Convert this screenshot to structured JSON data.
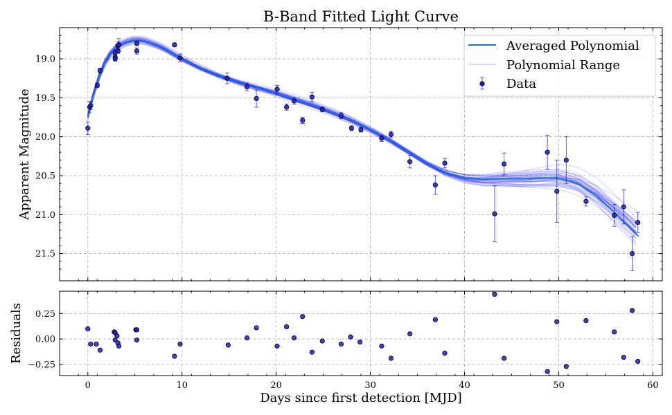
{
  "chart_data": [
    {
      "type": "scatter",
      "title": "B-Band Fitted Light Curve",
      "ylabel": "Apparent Magnitude",
      "xlim": [
        -3,
        61
      ],
      "ylim": [
        21.85,
        18.6
      ],
      "y_inverted": true,
      "xticks": [
        0,
        10,
        20,
        30,
        40,
        50,
        60
      ],
      "yticks": [
        "19.0",
        "19.5",
        "20.0",
        "20.5",
        "21.0",
        "21.5"
      ],
      "grid": true,
      "legend": {
        "placement": "top-right",
        "entries": [
          {
            "label": "Averaged Polynomial",
            "kind": "line"
          },
          {
            "label": "Polynomial Range",
            "kind": "line-faint"
          },
          {
            "label": "Data",
            "kind": "errorbar-marker"
          }
        ]
      },
      "series": [
        {
          "name": "Averaged Polynomial",
          "x": [
            0,
            0.5,
            1,
            1.5,
            2,
            2.5,
            3,
            3.5,
            4,
            4.5,
            5,
            5.5,
            6,
            7,
            8,
            9,
            10,
            12,
            14,
            16,
            18,
            20,
            22,
            24,
            26,
            28,
            30,
            32,
            34,
            36,
            38,
            40,
            42,
            44,
            46,
            48,
            50,
            52,
            54,
            56,
            57,
            58,
            58.5
          ],
          "y": [
            19.74,
            19.5,
            19.3,
            19.13,
            19.0,
            18.92,
            18.86,
            18.82,
            18.79,
            18.77,
            18.76,
            18.76,
            18.77,
            18.81,
            18.86,
            18.93,
            19.0,
            19.12,
            19.22,
            19.3,
            19.37,
            19.44,
            19.52,
            19.6,
            19.69,
            19.79,
            19.91,
            20.04,
            20.19,
            20.34,
            20.46,
            20.53,
            20.55,
            20.54,
            20.54,
            20.53,
            20.53,
            20.6,
            20.76,
            20.98,
            21.1,
            21.22,
            21.28
          ]
        },
        {
          "name": "Data",
          "x": [
            0,
            0.2,
            0.3,
            1,
            1.3,
            2.9,
            2.9,
            2.9,
            3.2,
            3.2,
            3.3,
            5.2,
            5.2,
            9.2,
            9.8,
            14.8,
            16.9,
            17.9,
            20.1,
            21.1,
            21.9,
            22.8,
            23.8,
            24.9,
            26.9,
            28.0,
            29.0,
            31.2,
            32.2,
            34.2,
            36.9,
            37.9,
            43.2,
            44.2,
            48.8,
            49.8,
            50.8,
            52.9,
            55.9,
            56.9,
            57.8,
            58.4
          ],
          "y": [
            19.89,
            19.62,
            19.6,
            19.34,
            19.15,
            18.92,
            18.98,
            19.0,
            18.83,
            18.9,
            18.82,
            18.8,
            18.9,
            18.82,
            18.99,
            19.25,
            19.36,
            19.51,
            19.39,
            19.62,
            19.54,
            19.79,
            19.49,
            19.65,
            19.73,
            19.89,
            19.91,
            20.02,
            19.97,
            20.32,
            20.62,
            20.34,
            20.99,
            20.35,
            20.2,
            20.7,
            20.3,
            20.83,
            21.01,
            20.9,
            21.5,
            21.1
          ],
          "yerr": [
            0.08,
            0.07,
            0.05,
            0.03,
            0.03,
            0.03,
            0.03,
            0.03,
            0.05,
            0.03,
            0.08,
            0.03,
            0.04,
            0.02,
            0.05,
            0.07,
            0.05,
            0.11,
            0.05,
            0.04,
            0.04,
            0.04,
            0.06,
            0.03,
            0.04,
            0.03,
            0.03,
            0.04,
            0.04,
            0.08,
            0.12,
            0.06,
            0.36,
            0.14,
            0.22,
            0.4,
            0.3,
            0.06,
            0.14,
            0.22,
            0.22,
            0.13
          ]
        }
      ]
    },
    {
      "type": "scatter",
      "xlabel": "Days since first detection [MJD]",
      "ylabel": "Residuals",
      "xlim": [
        -3,
        61
      ],
      "ylim": [
        -0.36,
        0.47
      ],
      "xticks": [
        0,
        10,
        20,
        30,
        40,
        50,
        60
      ],
      "yticks": [
        "0.25",
        "0.00",
        "−0.25"
      ],
      "grid": true,
      "series": [
        {
          "name": "Residuals",
          "x": [
            0,
            0.3,
            0.9,
            1.3,
            2.8,
            2.9,
            2.9,
            3.1,
            3.2,
            3.3,
            5.1,
            5.2,
            5.2,
            9.2,
            9.8,
            14.9,
            16.9,
            17.9,
            20.1,
            21.1,
            21.9,
            22.8,
            23.8,
            24.9,
            26.9,
            27.9,
            28.9,
            31.2,
            32.2,
            34.2,
            36.9,
            37.9,
            43.2,
            44.2,
            48.8,
            49.8,
            50.8,
            52.9,
            55.9,
            56.9,
            57.8,
            58.4
          ],
          "y": [
            0.1,
            -0.05,
            -0.05,
            -0.11,
            0.07,
            0.06,
            -0.01,
            0.03,
            -0.04,
            -0.07,
            0.09,
            0.09,
            -0.01,
            -0.17,
            -0.05,
            -0.06,
            0.01,
            0.11,
            -0.07,
            0.12,
            0.01,
            0.22,
            -0.13,
            -0.02,
            -0.05,
            0.02,
            -0.03,
            -0.07,
            -0.19,
            0.05,
            0.19,
            -0.14,
            0.44,
            -0.19,
            -0.32,
            0.17,
            -0.27,
            0.18,
            0.07,
            -0.18,
            0.28,
            -0.22
          ]
        }
      ]
    }
  ]
}
